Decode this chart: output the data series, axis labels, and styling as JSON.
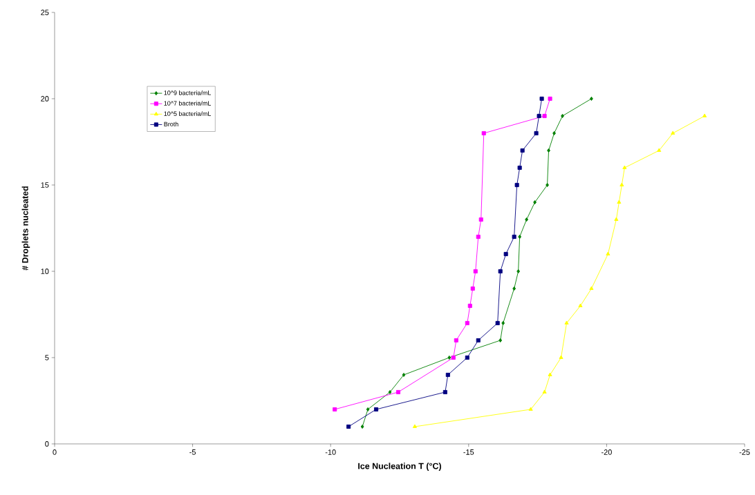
{
  "chart_data": {
    "type": "line",
    "xlabel": "Ice Nucleation T (°C)",
    "ylabel": "# Droplets nucleated",
    "xlim": [
      0,
      -25
    ],
    "xticks": [
      0,
      -5,
      -10,
      -15,
      -20,
      -25
    ],
    "ylim": [
      0,
      25
    ],
    "yticks": [
      0,
      5,
      10,
      15,
      20,
      25
    ],
    "grid": false,
    "legend": "top left",
    "series": [
      {
        "name": "10^9 bacteria/mL",
        "color": "#008000",
        "marker": "diamond",
        "x": [
          -11.15,
          -11.35,
          -12.15,
          -12.65,
          -14.3,
          -16.15,
          -16.25,
          -16.65,
          -16.8,
          -16.85,
          -17.1,
          -17.4,
          -17.85,
          -17.9,
          -18.1,
          -18.4,
          -19.45
        ],
        "values": [
          1,
          2,
          3,
          4,
          5,
          6,
          7,
          9,
          10,
          12,
          13,
          14,
          15,
          17,
          18,
          19,
          20
        ]
      },
      {
        "name": "10^7 bacteria/mL",
        "color": "#ff00ff",
        "marker": "square",
        "x": [
          -10.15,
          -12.45,
          -14.45,
          -14.55,
          -14.95,
          -15.05,
          -15.15,
          -15.25,
          -15.35,
          -15.45,
          -15.55,
          -17.75,
          -17.95
        ],
        "values": [
          2,
          3,
          5,
          6,
          7,
          8,
          9,
          10,
          12,
          13,
          18,
          19,
          20
        ]
      },
      {
        "name": "10^5 bacteria/mL",
        "color": "#ffff00",
        "marker": "triangle",
        "x": [
          -13.05,
          -17.25,
          -17.75,
          -17.95,
          -18.35,
          -18.55,
          -19.05,
          -19.45,
          -20.05,
          -20.35,
          -20.45,
          -20.55,
          -20.65,
          -21.9,
          -22.4,
          -23.55
        ],
        "values": [
          1,
          2,
          3,
          4,
          5,
          7,
          8,
          9,
          11,
          13,
          14,
          15,
          16,
          17,
          18,
          19
        ]
      },
      {
        "name": "Broth",
        "color": "#000080",
        "marker": "square",
        "x": [
          -10.65,
          -11.65,
          -14.15,
          -14.25,
          -14.95,
          -15.35,
          -16.05,
          -16.15,
          -16.35,
          -16.65,
          -16.75,
          -16.85,
          -16.95,
          -17.45,
          -17.55,
          -17.65
        ],
        "values": [
          1,
          2,
          3,
          4,
          5,
          6,
          7,
          10,
          11,
          12,
          15,
          16,
          17,
          18,
          19,
          20
        ]
      }
    ]
  }
}
